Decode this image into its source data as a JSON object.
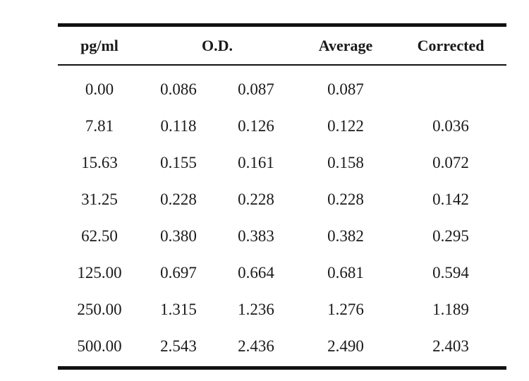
{
  "table": {
    "headers": {
      "conc": "pg/ml",
      "od": "O.D.",
      "average": "Average",
      "corrected": "Corrected"
    },
    "rows": [
      {
        "conc": "0.00",
        "od1": "0.086",
        "od2": "0.087",
        "average": "0.087",
        "corrected": ""
      },
      {
        "conc": "7.81",
        "od1": "0.118",
        "od2": "0.126",
        "average": "0.122",
        "corrected": "0.036"
      },
      {
        "conc": "15.63",
        "od1": "0.155",
        "od2": "0.161",
        "average": "0.158",
        "corrected": "0.072"
      },
      {
        "conc": "31.25",
        "od1": "0.228",
        "od2": "0.228",
        "average": "0.228",
        "corrected": "0.142"
      },
      {
        "conc": "62.50",
        "od1": "0.380",
        "od2": "0.383",
        "average": "0.382",
        "corrected": "0.295"
      },
      {
        "conc": "125.00",
        "od1": "0.697",
        "od2": "0.664",
        "average": "0.681",
        "corrected": "0.594"
      },
      {
        "conc": "250.00",
        "od1": "1.315",
        "od2": "1.236",
        "average": "1.276",
        "corrected": "1.189"
      },
      {
        "conc": "500.00",
        "od1": "2.543",
        "od2": "2.436",
        "average": "2.490",
        "corrected": "2.403"
      }
    ]
  }
}
